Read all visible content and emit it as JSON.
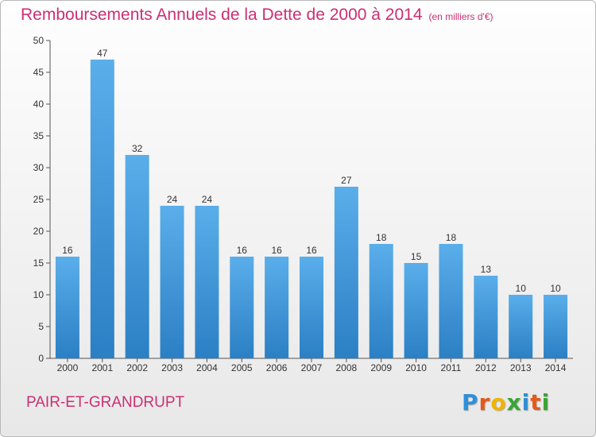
{
  "title": "Remboursements Annuels de la Dette de 2000 à 2014",
  "unit_note": "(en milliers d'€)",
  "commune": "PAIR-ET-GRANDRUPT",
  "logo": {
    "text": "Proxiti",
    "letters": [
      {
        "ch": "P",
        "color": "#2f8fd6"
      },
      {
        "ch": "r",
        "color": "#e35a1a"
      },
      {
        "ch": "o",
        "color": "#f0b400"
      },
      {
        "ch": "x",
        "color": "#3aa535"
      },
      {
        "ch": "i",
        "color": "#2f8fd6"
      },
      {
        "ch": "t",
        "color": "#e35a1a"
      },
      {
        "ch": "i",
        "color": "#3aa535"
      }
    ]
  },
  "colors": {
    "accent": "#cc2f73",
    "bar_top": "#5aaeea",
    "bar_bottom": "#2b7fc4",
    "axis": "#555555",
    "text": "#333333"
  },
  "chart_data": {
    "type": "bar",
    "categories": [
      "2000",
      "2001",
      "2002",
      "2003",
      "2004",
      "2005",
      "2006",
      "2007",
      "2008",
      "2009",
      "2010",
      "2011",
      "2012",
      "2013",
      "2014"
    ],
    "values": [
      16,
      47,
      32,
      24,
      24,
      16,
      16,
      16,
      27,
      18,
      15,
      18,
      13,
      10,
      10
    ],
    "data_labels": [
      "16",
      "47",
      "32",
      "24",
      "24",
      "16",
      "16",
      "16",
      "27",
      "18",
      "15",
      "18",
      "13",
      "10",
      "10"
    ],
    "title": "Remboursements Annuels de la Dette de 2000 à 2014",
    "xlabel": "",
    "ylabel": "",
    "ylim": [
      0,
      50
    ],
    "yticks": [
      0,
      5,
      10,
      15,
      20,
      25,
      30,
      35,
      40,
      45,
      50
    ],
    "grid": false,
    "legend": "none"
  }
}
